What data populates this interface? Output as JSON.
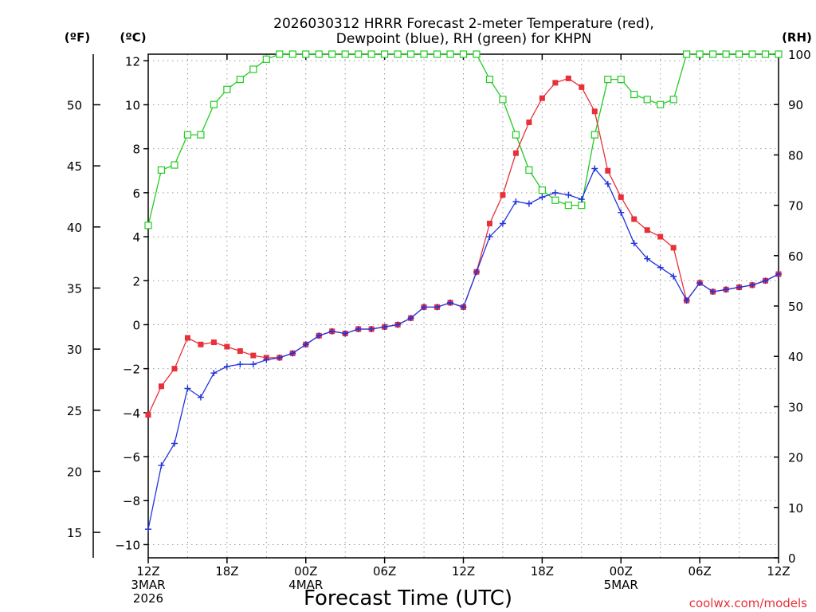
{
  "colors": {
    "temperature": "#e8303a",
    "dewpoint": "#2233dd",
    "rh": "#22cc22",
    "grid": "#9a9a9a",
    "axis": "#000000"
  },
  "credit": "coolwx.com/models",
  "chart_data": {
    "type": "line",
    "title_line1": "2026030312 HRRR Forecast 2-meter Temperature (red),",
    "title_line2": "Dewpoint (blue), RH (green) for KHPN",
    "xlabel": "Forecast Time (UTC)",
    "unit_f": "(ºF)",
    "unit_c": "(ºC)",
    "unit_rh": "(RH)",
    "x_range": [
      0,
      48
    ],
    "ylim_c": [
      -10.6,
      12.3
    ],
    "ylim_rh": [
      0,
      100
    ],
    "ticks_c": [
      "-10",
      "-8",
      "-6",
      "-4",
      "-2",
      "0",
      "2",
      "4",
      "6",
      "8",
      "10",
      "12"
    ],
    "ticks_f": [
      "15",
      "20",
      "25",
      "30",
      "35",
      "40",
      "45",
      "50"
    ],
    "ticks_rh": [
      "0",
      "10",
      "20",
      "30",
      "40",
      "50",
      "60",
      "70",
      "80",
      "90",
      "100"
    ],
    "x_ticks": [
      {
        "hour": 0,
        "label": "12Z",
        "date": "3MAR",
        "year": "2026"
      },
      {
        "hour": 6,
        "label": "18Z",
        "date": "",
        "year": ""
      },
      {
        "hour": 12,
        "label": "00Z",
        "date": "4MAR",
        "year": ""
      },
      {
        "hour": 18,
        "label": "06Z",
        "date": "",
        "year": ""
      },
      {
        "hour": 24,
        "label": "12Z",
        "date": "",
        "year": ""
      },
      {
        "hour": 30,
        "label": "18Z",
        "date": "",
        "year": ""
      },
      {
        "hour": 36,
        "label": "00Z",
        "date": "5MAR",
        "year": ""
      },
      {
        "hour": 42,
        "label": "06Z",
        "date": "",
        "year": ""
      },
      {
        "hour": 48,
        "label": "12Z",
        "date": "",
        "year": ""
      }
    ],
    "series": [
      {
        "name": "Temperature (°C)",
        "axis": "c",
        "values": [
          -4.1,
          -2.8,
          -2.0,
          -0.6,
          -0.9,
          -0.8,
          -1.0,
          -1.2,
          -1.4,
          -1.5,
          -1.5,
          -1.3,
          -0.9,
          -0.5,
          -0.3,
          -0.4,
          -0.2,
          -0.2,
          -0.1,
          0.0,
          0.3,
          0.8,
          0.8,
          1.0,
          0.8,
          2.4,
          4.6,
          5.9,
          7.8,
          9.2,
          10.3,
          11.0,
          11.2,
          10.8,
          9.7,
          7.0,
          5.8,
          4.8,
          4.3,
          4.0,
          3.5,
          1.1,
          1.9,
          1.5,
          1.6,
          1.7,
          1.8,
          2.0,
          2.3
        ]
      },
      {
        "name": "Dewpoint (°C)",
        "axis": "c",
        "values": [
          -9.3,
          -6.4,
          -5.4,
          -2.9,
          -3.3,
          -2.2,
          -1.9,
          -1.8,
          -1.8,
          -1.6,
          -1.5,
          -1.3,
          -0.9,
          -0.5,
          -0.3,
          -0.4,
          -0.2,
          -0.2,
          -0.1,
          0.0,
          0.3,
          0.8,
          0.8,
          1.0,
          0.8,
          2.4,
          4.0,
          4.6,
          5.6,
          5.5,
          5.8,
          6.0,
          5.9,
          5.7,
          7.1,
          6.4,
          5.1,
          3.7,
          3.0,
          2.6,
          2.2,
          1.1,
          1.9,
          1.5,
          1.6,
          1.7,
          1.8,
          2.0,
          2.3
        ]
      },
      {
        "name": "RH (%)",
        "axis": "rh",
        "values": [
          66,
          77,
          78,
          84,
          84,
          90,
          93,
          95,
          97,
          99,
          100,
          100,
          100,
          100,
          100,
          100,
          100,
          100,
          100,
          100,
          100,
          100,
          100,
          100,
          100,
          100,
          95,
          91,
          84,
          77,
          73,
          71,
          70,
          70,
          84,
          95,
          95,
          92,
          91,
          90,
          91,
          100,
          100,
          100,
          100,
          100,
          100,
          100,
          100
        ]
      }
    ]
  }
}
